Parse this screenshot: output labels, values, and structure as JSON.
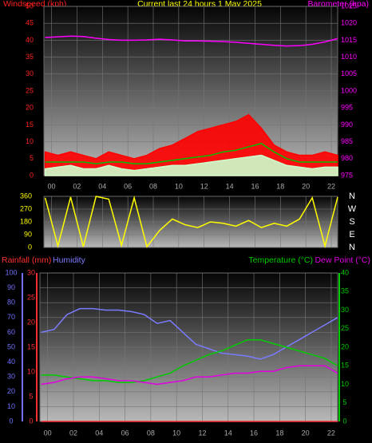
{
  "chart_data": [
    {
      "type": "line",
      "title": "Current last 24 hours 1 May 2025",
      "y_label": "Windspeed (kph)",
      "y_color": "#ff2020",
      "y2_color": "#ff00ff",
      "x": [
        -0.5,
        0.5,
        1.5,
        2.5,
        3.5,
        4.5,
        5.5,
        6.5,
        7.5,
        8.5,
        9.5,
        10.5,
        11.5,
        12.5,
        13.5,
        14.5,
        15.5,
        16.5,
        17.5,
        18.5,
        19.5,
        20.5,
        21.5,
        22.5
      ],
      "xlim": [
        -0.6,
        22.5
      ],
      "xticks": [
        {
          "value": 0,
          "label": "00"
        },
        {
          "value": 2,
          "label": "02"
        },
        {
          "value": 4,
          "label": "04"
        },
        {
          "value": 6,
          "label": "06"
        },
        {
          "value": 8,
          "label": "08"
        },
        10,
        12,
        14,
        16,
        18,
        20,
        22
      ],
      "ylim": [
        0,
        50
      ],
      "yticks": [
        0,
        5,
        10,
        15,
        20,
        25,
        30,
        35,
        40,
        45,
        50
      ],
      "y2lim": [
        975,
        1025
      ],
      "y2ticks": [
        975,
        980,
        985,
        990,
        995,
        1000,
        1005,
        1010,
        1015,
        1020,
        1025
      ],
      "series": [
        {
          "color": "#ff0000",
          "area": true,
          "values": [
            7,
            6,
            7,
            6,
            5,
            7,
            6,
            5,
            6,
            8,
            9,
            11,
            13,
            14,
            15,
            16,
            18,
            14,
            9,
            7,
            6,
            6,
            7,
            6
          ]
        },
        {
          "color": "#ccffcc",
          "area": true,
          "values": [
            2,
            2.5,
            3,
            2,
            2,
            3,
            2,
            1.5,
            2,
            2.5,
            3,
            3,
            3.5,
            4,
            4.5,
            5,
            5.5,
            6,
            4.5,
            3,
            2.5,
            2,
            2.5,
            2.5
          ]
        },
        {
          "color": "#00c000",
          "values": [
            4,
            4,
            4,
            4,
            3.5,
            4,
            4,
            3.5,
            3.5,
            4,
            4.5,
            5,
            5.5,
            6,
            7,
            7.5,
            8.5,
            9.5,
            7,
            5,
            4,
            4,
            4,
            4
          ]
        },
        {
          "name": "Barometer (hpa)",
          "axis": "y2",
          "color": "#ff00ff",
          "values": [
            1015.8,
            1016,
            1016.2,
            1016.1,
            1015.6,
            1015.2,
            1015,
            1015,
            1015.1,
            1015.3,
            1015.1,
            1014.8,
            1014.8,
            1014.7,
            1014.6,
            1014.4,
            1014.1,
            1013.8,
            1013.5,
            1013.3,
            1013.4,
            1013.8,
            1014.5,
            1015.5
          ]
        }
      ]
    },
    {
      "type": "line",
      "y_color": "#ffff00",
      "y2_color": "#ffffff",
      "x": [
        -0.5,
        0.5,
        1.5,
        2.5,
        3.5,
        4.5,
        5.5,
        6.5,
        7.5,
        8.5,
        9.5,
        10.5,
        11.5,
        12.5,
        13.5,
        14.5,
        15.5,
        16.5,
        17.5,
        18.5,
        19.5,
        20.5,
        21.5,
        22.5
      ],
      "xlim": [
        -0.6,
        22.5
      ],
      "xticks": [
        {
          "value": 0,
          "label": "00"
        },
        {
          "value": 2,
          "label": "02"
        },
        {
          "value": 4,
          "label": "04"
        },
        {
          "value": 6,
          "label": "06"
        },
        {
          "value": 8,
          "label": "08"
        },
        10,
        12,
        14,
        16,
        18,
        20,
        22
      ],
      "ylim": [
        0,
        360
      ],
      "yticks": [
        0,
        90,
        180,
        270,
        360
      ],
      "y2lim": [
        0,
        360
      ],
      "y2ticks": [
        {
          "value": 360,
          "label": "N"
        },
        {
          "value": 270,
          "label": "W"
        },
        {
          "value": 180,
          "label": "S"
        },
        {
          "value": 90,
          "label": "E"
        },
        {
          "value": 0,
          "label": "N"
        }
      ],
      "series": [
        {
          "color": "#ffff00",
          "values": [
            350,
            10,
            355,
            5,
            360,
            340,
            15,
            350,
            5,
            120,
            200,
            160,
            140,
            180,
            170,
            150,
            190,
            140,
            170,
            150,
            200,
            350,
            10,
            355
          ]
        }
      ]
    },
    {
      "type": "line",
      "y_color": "#7070ff",
      "y2_color": "#00cc00",
      "y3_color": "#ff3030",
      "x": [
        -0.5,
        0.5,
        1.5,
        2.5,
        3.5,
        4.5,
        5.5,
        6.5,
        7.5,
        8.5,
        9.5,
        10.5,
        11.5,
        12.5,
        13.5,
        14.5,
        15.5,
        16.5,
        17.5,
        18.5,
        19.5,
        20.5,
        21.5,
        22.5
      ],
      "xlim": [
        -0.6,
        22.5
      ],
      "xticks": [
        {
          "value": 0,
          "label": "00"
        },
        {
          "value": 2,
          "label": "02"
        },
        {
          "value": 4,
          "label": "04"
        },
        {
          "value": 6,
          "label": "06"
        },
        {
          "value": 8,
          "label": "08"
        },
        10,
        12,
        14,
        16,
        18,
        20,
        22
      ],
      "ylim": [
        0,
        100
      ],
      "yticks": [
        0,
        10,
        20,
        30,
        40,
        50,
        60,
        70,
        80,
        90,
        100
      ],
      "y2lim": [
        0,
        40
      ],
      "y2ticks": [
        0,
        5,
        10,
        15,
        20,
        25,
        30,
        35,
        40
      ],
      "y3lim": [
        0,
        30
      ],
      "y3ticks": [
        0,
        5,
        10,
        15,
        20,
        25,
        30
      ],
      "series": [
        {
          "name": "Rainfall (mm)",
          "axis": "y3",
          "color": "#ff3030",
          "values": [
            0,
            0,
            0,
            0,
            0,
            0,
            0,
            0,
            0,
            0,
            0,
            0,
            0,
            0,
            0,
            0,
            0,
            0,
            0,
            0,
            0,
            0,
            0,
            0
          ]
        },
        {
          "name": "Humidity",
          "color": "#7b7bff",
          "values": [
            60,
            62,
            72,
            76,
            76,
            75,
            75,
            74,
            72,
            66,
            68,
            60,
            52,
            49,
            46,
            45,
            44,
            42,
            45,
            50,
            55,
            60,
            65,
            70
          ]
        },
        {
          "name": "Temperature (°C)",
          "axis": "y2",
          "color": "#00cc00",
          "values": [
            12.5,
            12.5,
            12,
            11.5,
            11,
            11,
            10.5,
            10.5,
            11,
            12,
            13,
            15,
            16.5,
            18,
            19,
            20.5,
            22,
            22,
            21,
            20,
            19,
            18,
            17,
            15
          ]
        },
        {
          "name": "Dew Point (°C)",
          "axis": "y2",
          "color": "#e000e0",
          "values": [
            10,
            10.5,
            11.5,
            12,
            12,
            11.5,
            11,
            11,
            10.5,
            10,
            10.5,
            11,
            12,
            12,
            12.5,
            13,
            13,
            13.5,
            13.5,
            14.5,
            15,
            15,
            15,
            13
          ]
        }
      ]
    }
  ]
}
